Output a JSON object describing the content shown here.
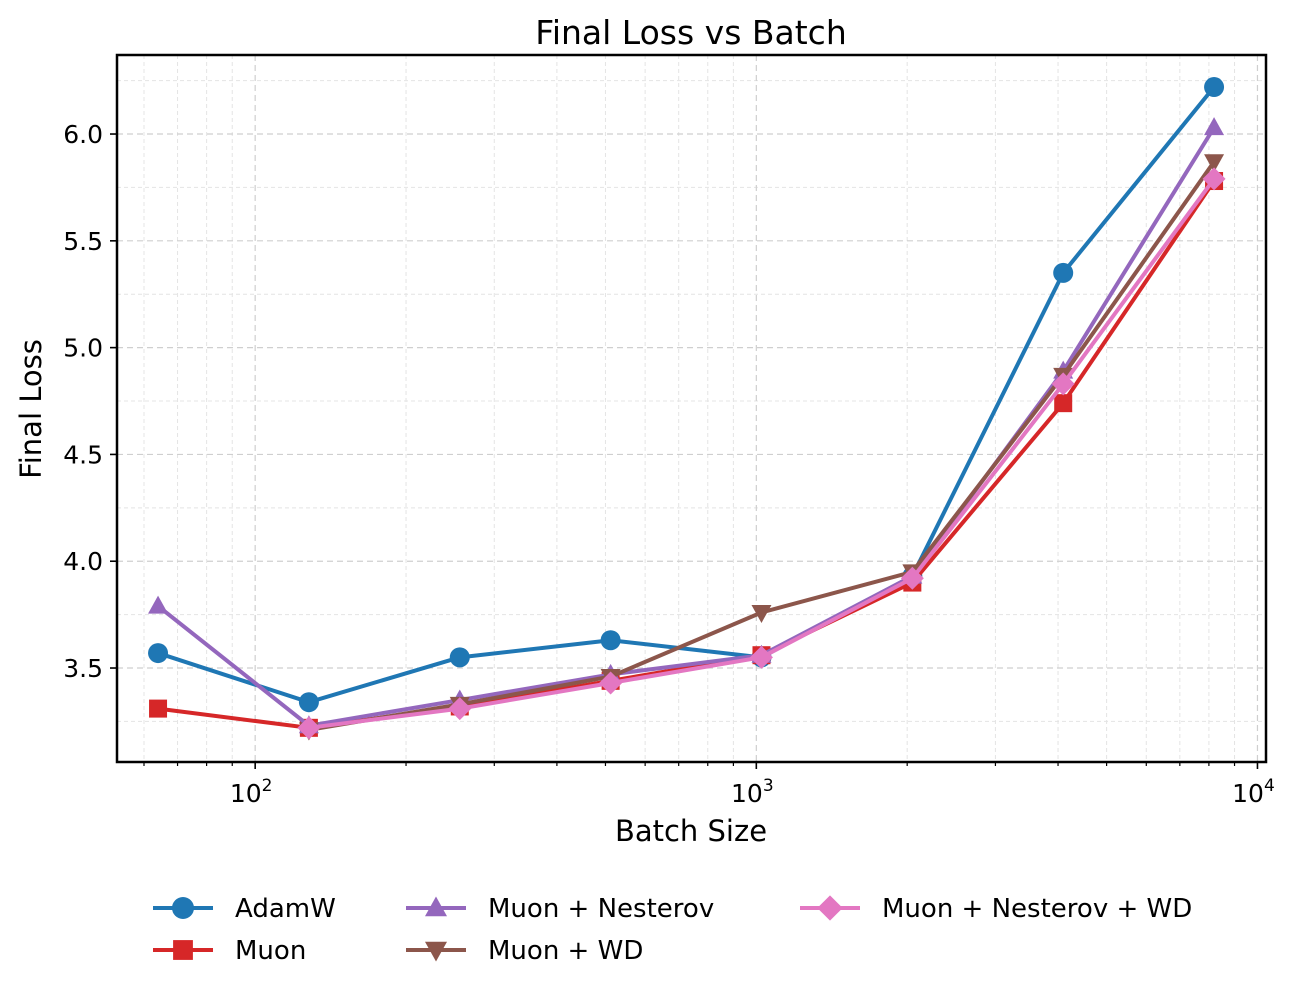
{
  "chart_data": {
    "type": "line",
    "title": "Final Loss vs Batch",
    "xlabel": "Batch Size",
    "ylabel": "Final Loss",
    "xscale": "log",
    "xlim": [
      53,
      10400
    ],
    "ylim": [
      3.06,
      6.37
    ],
    "x": [
      64,
      128,
      256,
      512,
      1024,
      2048,
      4096,
      8192
    ],
    "x_ticks": [
      {
        "value": 100,
        "base": "10",
        "exp": "2"
      },
      {
        "value": 1000,
        "base": "10",
        "exp": "3"
      },
      {
        "value": 10000,
        "base": "10",
        "exp": "4"
      }
    ],
    "y_ticks": [
      3.5,
      4.0,
      4.5,
      5.0,
      5.5,
      6.0
    ],
    "y_tick_labels": [
      "3.5",
      "4.0",
      "4.5",
      "5.0",
      "5.5",
      "6.0"
    ],
    "grid": true,
    "legend_position": "bottom-center",
    "series": [
      {
        "name": "AdamW",
        "color": "#1f77b4",
        "marker": "circle",
        "values": [
          3.57,
          3.34,
          3.55,
          3.63,
          3.55,
          3.93,
          5.35,
          6.22
        ]
      },
      {
        "name": "Muon",
        "color": "#d62728",
        "marker": "square",
        "values": [
          3.31,
          3.22,
          3.32,
          3.44,
          3.56,
          3.9,
          4.74,
          5.78
        ]
      },
      {
        "name": "Muon + Nesterov",
        "color": "#9467bd",
        "marker": "triangle-up",
        "values": [
          3.79,
          3.23,
          3.35,
          3.47,
          3.56,
          3.93,
          4.89,
          6.03
        ]
      },
      {
        "name": "Muon + WD",
        "color": "#8c564b",
        "marker": "triangle-down",
        "values": [
          null,
          3.21,
          3.33,
          3.46,
          3.76,
          3.95,
          4.87,
          5.87
        ]
      },
      {
        "name": "Muon + Nesterov + WD",
        "color": "#e377c2",
        "marker": "diamond",
        "values": [
          null,
          3.22,
          3.31,
          3.43,
          3.55,
          3.92,
          4.83,
          5.79
        ]
      }
    ]
  }
}
